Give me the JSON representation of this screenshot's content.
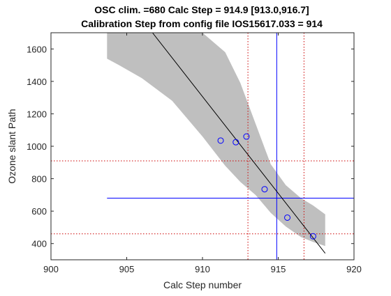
{
  "chart_data": {
    "type": "scatter",
    "title": [
      "OSC clim. =680   Calc Step = 914.9 [913.0,916.7]",
      "Calibration Step from config file IOS15617.033 = 914"
    ],
    "xlabel": "Calc Step number",
    "ylabel": "Ozone slant Path",
    "xlim": [
      900,
      920
    ],
    "ylim": [
      300,
      1700
    ],
    "xticks": [
      900,
      905,
      910,
      915,
      920
    ],
    "yticks": [
      400,
      600,
      800,
      1000,
      1200,
      1400,
      1600
    ],
    "grid": false,
    "legend": "none",
    "points": {
      "x": [
        911.2,
        912.2,
        912.9,
        914.1,
        915.6,
        917.3
      ],
      "y": [
        1035,
        1025,
        1060,
        735,
        560,
        445
      ],
      "color": "#0000ff"
    },
    "fit_line": {
      "x": [
        906.7,
        918.1
      ],
      "y": [
        1700,
        340
      ],
      "color": "#000000"
    },
    "confidence_band": {
      "x": [
        903.7,
        904.5,
        906.0,
        908.0,
        910.0,
        911.5,
        912.5,
        913.5,
        914.5,
        915.5,
        916.5,
        917.3,
        918.1
      ],
      "upper": [
        1700,
        1700,
        1700,
        1700,
        1700,
        1580,
        1390,
        1140,
        890,
        760,
        680,
        635,
        580
      ],
      "lower": [
        1540,
        1500,
        1420,
        1280,
        1060,
        880,
        780,
        700,
        590,
        505,
        440,
        410,
        385
      ],
      "color": "#bfbfbf"
    },
    "vertical_lines": [
      {
        "x": 914.9,
        "color": "#0000ff",
        "style": "solid"
      },
      {
        "x": 913.0,
        "color": "#cc0000",
        "style": "dotted"
      },
      {
        "x": 916.7,
        "color": "#cc0000",
        "style": "dotted"
      }
    ],
    "horizontal_lines": [
      {
        "y": 680,
        "x_from": 903.7,
        "color": "#0000ff",
        "style": "solid"
      },
      {
        "y": 910,
        "color": "#cc0000",
        "style": "dotted"
      },
      {
        "y": 460,
        "color": "#cc0000",
        "style": "dotted"
      }
    ]
  }
}
